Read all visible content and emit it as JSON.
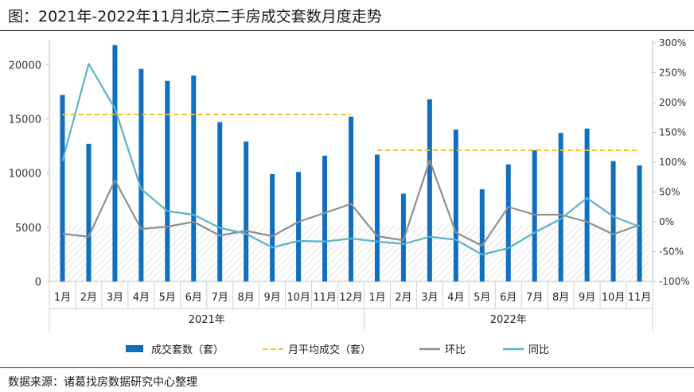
{
  "title": "图：2021年-2022年11月北京二手房成交套数月度走势",
  "source": "数据来源：诸葛找房数据研究中心整理",
  "chart_data": {
    "type": "bar",
    "categories": [
      "1月",
      "2月",
      "3月",
      "4月",
      "5月",
      "6月",
      "7月",
      "8月",
      "9月",
      "10月",
      "11月",
      "12月",
      "1月",
      "2月",
      "3月",
      "4月",
      "5月",
      "6月",
      "7月",
      "8月",
      "9月",
      "10月",
      "11月"
    ],
    "groups": [
      {
        "label": "2021年",
        "start": 0,
        "end": 11
      },
      {
        "label": "2022年",
        "start": 12,
        "end": 22
      }
    ],
    "series": [
      {
        "name": "成交套数（套）",
        "kind": "bar",
        "axis": "left",
        "color": "#0f6fc0",
        "values": [
          17200,
          12700,
          21800,
          19600,
          18500,
          19000,
          14700,
          12900,
          9900,
          10100,
          11600,
          15200,
          11700,
          8100,
          16800,
          14000,
          8500,
          10800,
          12100,
          13700,
          14100,
          11100,
          10700
        ]
      },
      {
        "name": "月平均成交（套）",
        "kind": "dashed",
        "axis": "left",
        "color": "#f5c12a",
        "segments": [
          {
            "start": 0,
            "end": 11,
            "value": 15400
          },
          {
            "start": 12,
            "end": 22,
            "value": 12100
          }
        ]
      },
      {
        "name": "环比",
        "kind": "line",
        "axis": "right",
        "color": "#8f8f8f",
        "values": [
          -20,
          -25,
          70,
          -12,
          -8,
          0,
          -23,
          -15,
          -24,
          0,
          15,
          30,
          -24,
          -31,
          103,
          -18,
          -40,
          25,
          12,
          12,
          0,
          -21,
          -5
        ]
      },
      {
        "name": "同比",
        "kind": "line",
        "axis": "right",
        "color": "#5ab4cb",
        "values": [
          102,
          265,
          190,
          55,
          18,
          12,
          -10,
          -20,
          -43,
          -32,
          -33,
          -28,
          -33,
          -37,
          -25,
          -30,
          -55,
          -44,
          -18,
          5,
          40,
          9,
          -8
        ]
      }
    ],
    "y_left": {
      "min": 0,
      "max": 22000,
      "ticks": [
        0,
        5000,
        10000,
        15000,
        20000
      ]
    },
    "y_right": {
      "min": -100,
      "max": 300,
      "ticks": [
        "-100%",
        "-50%",
        "0%",
        "50%",
        "100%",
        "150%",
        "200%",
        "250%",
        "300%"
      ]
    },
    "legend_position": "bottom",
    "grid": false
  }
}
